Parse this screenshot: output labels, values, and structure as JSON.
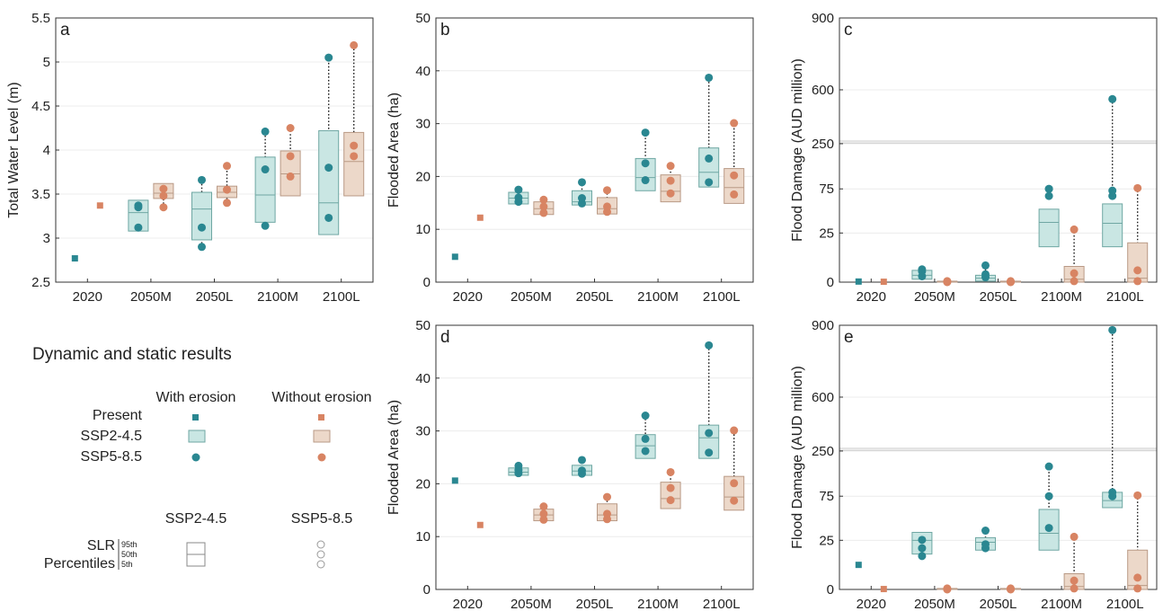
{
  "colors": {
    "erosion_box": "#c9e6e3",
    "erosion_box_edge": "#6fa7a3",
    "erosion_marker": "#2a8791",
    "noerosion_box": "#ecd8c9",
    "noerosion_box_edge": "#b99a86",
    "noerosion_marker": "#d88463",
    "grid": "#ececec"
  },
  "chart_data": [
    {
      "id": "a",
      "type": "box",
      "panel_label": "a",
      "ylabel": "Total Water Level (m)",
      "ylim": [
        2.5,
        5.5
      ],
      "yticks": [
        2.5,
        3,
        3.5,
        4,
        4.5,
        5,
        5.5
      ],
      "ytick_labels": [
        "2.5",
        "3",
        "3.5",
        "4",
        "4.5",
        "5",
        "5.5"
      ],
      "categories": [
        "2020",
        "2050M",
        "2050L",
        "2100M",
        "2100L"
      ],
      "present": {
        "with_erosion": 2.77,
        "without_erosion": 3.37
      },
      "ssp245": {
        "with_erosion": [
          [
            3.08,
            3.29,
            3.43
          ],
          [
            2.98,
            3.33,
            3.52
          ],
          [
            3.18,
            3.49,
            3.92
          ],
          [
            3.04,
            3.4,
            4.22
          ]
        ],
        "without_erosion": [
          [
            3.45,
            3.51,
            3.62
          ],
          [
            3.46,
            3.52,
            3.59
          ],
          [
            3.48,
            3.73,
            3.99
          ],
          [
            3.48,
            3.87,
            4.2
          ]
        ]
      },
      "ssp585": {
        "with_erosion": [
          [
            3.12,
            3.35,
            3.37
          ],
          [
            2.9,
            3.12,
            3.66
          ],
          [
            3.14,
            3.78,
            4.21
          ],
          [
            3.23,
            3.8,
            5.05
          ]
        ],
        "without_erosion": [
          [
            3.35,
            3.48,
            3.56
          ],
          [
            3.4,
            3.55,
            3.82
          ],
          [
            3.7,
            3.93,
            4.25
          ],
          [
            3.93,
            4.05,
            5.19
          ]
        ]
      }
    },
    {
      "id": "b",
      "type": "box",
      "panel_label": "b",
      "ylabel": "Flooded Area (ha)",
      "ylim": [
        0,
        50
      ],
      "yticks": [
        0,
        10,
        20,
        30,
        40,
        50
      ],
      "ytick_labels": [
        "0",
        "10",
        "20",
        "30",
        "40",
        "50"
      ],
      "categories": [
        "2020",
        "2050M",
        "2050L",
        "2100M",
        "2100L"
      ],
      "present": {
        "with_erosion": 4.8,
        "without_erosion": 12.2
      },
      "ssp245": {
        "with_erosion": [
          [
            14.8,
            15.9,
            17.0
          ],
          [
            14.6,
            15.2,
            17.3
          ],
          [
            17.3,
            19.8,
            23.4
          ],
          [
            18.0,
            20.8,
            25.4
          ]
        ],
        "without_erosion": [
          [
            12.8,
            13.9,
            15.2
          ],
          [
            12.9,
            13.9,
            16.0
          ],
          [
            15.2,
            17.2,
            20.3
          ],
          [
            14.9,
            17.9,
            21.5
          ]
        ]
      },
      "ssp585": {
        "with_erosion": [
          [
            15.2,
            16.0,
            17.5
          ],
          [
            14.9,
            15.9,
            18.9
          ],
          [
            19.3,
            22.5,
            28.3
          ],
          [
            18.9,
            23.4,
            38.7
          ]
        ],
        "without_erosion": [
          [
            13.1,
            14.3,
            15.6
          ],
          [
            13.3,
            14.3,
            17.4
          ],
          [
            16.8,
            19.2,
            22.0
          ],
          [
            16.6,
            20.2,
            30.1
          ]
        ]
      }
    },
    {
      "id": "c",
      "type": "box",
      "panel_label": "c",
      "ylabel": "Flood Damage (AUD million)",
      "ylim": [
        0,
        900
      ],
      "yscale": "broken",
      "yticks": [
        0,
        25,
        75,
        250,
        600,
        900
      ],
      "ytick_labels": [
        "0",
        "25",
        "75",
        "250",
        "600",
        "900"
      ],
      "categories": [
        "2020",
        "2050M",
        "2050L",
        "2100M",
        "2100L"
      ],
      "present": {
        "with_erosion": 0.3,
        "without_erosion": 0.2
      },
      "ssp245": {
        "with_erosion": [
          [
            1.5,
            3.5,
            6.0
          ],
          [
            0.5,
            2.0,
            3.5
          ],
          [
            18,
            37,
            52
          ],
          [
            18,
            36,
            58
          ]
        ],
        "without_erosion": [
          [
            0,
            0,
            0.5
          ],
          [
            0,
            0,
            0.5
          ],
          [
            0,
            1.5,
            8
          ],
          [
            0,
            2,
            20
          ]
        ]
      },
      "ssp585": {
        "with_erosion": [
          [
            3,
            5.5,
            6.5
          ],
          [
            2.5,
            4,
            8.5
          ],
          [
            67,
            75,
            75
          ],
          [
            67,
            73,
            540
          ]
        ],
        "without_erosion": [
          [
            0,
            0.2,
            0.5
          ],
          [
            0,
            0.2,
            0.5
          ],
          [
            0.5,
            4.5,
            29
          ],
          [
            0.5,
            6,
            78
          ]
        ]
      }
    },
    {
      "id": "d",
      "type": "box",
      "panel_label": "d",
      "ylabel": "Flooded Area (ha)",
      "ylim": [
        0,
        50
      ],
      "yticks": [
        0,
        10,
        20,
        30,
        40,
        50
      ],
      "ytick_labels": [
        "0",
        "10",
        "20",
        "30",
        "40",
        "50"
      ],
      "categories": [
        "2020",
        "2050M",
        "2050L",
        "2100M",
        "2100L"
      ],
      "present": {
        "with_erosion": 20.6,
        "without_erosion": 12.2
      },
      "ssp245": {
        "with_erosion": [
          [
            21.6,
            22.2,
            23.0
          ],
          [
            21.6,
            22.4,
            23.5
          ],
          [
            24.8,
            27.2,
            29.3
          ],
          [
            24.8,
            28.7,
            31.1
          ]
        ],
        "without_erosion": [
          [
            13.0,
            14.1,
            15.2
          ],
          [
            13.0,
            14.1,
            16.2
          ],
          [
            15.3,
            17.2,
            20.3
          ],
          [
            15.0,
            17.5,
            21.4
          ]
        ]
      },
      "ssp585": {
        "with_erosion": [
          [
            22.0,
            22.6,
            23.4
          ],
          [
            21.9,
            22.5,
            24.5
          ],
          [
            26.2,
            28.5,
            32.9
          ],
          [
            25.9,
            29.6,
            46.2
          ]
        ],
        "without_erosion": [
          [
            13.2,
            14.3,
            15.7
          ],
          [
            13.3,
            14.3,
            17.5
          ],
          [
            16.9,
            19.2,
            22.2
          ],
          [
            16.8,
            20.1,
            30.1
          ]
        ]
      }
    },
    {
      "id": "e",
      "type": "box",
      "panel_label": "e",
      "ylabel": "Flood Damage (AUD million)",
      "ylim": [
        0,
        900
      ],
      "yscale": "broken",
      "yticks": [
        0,
        25,
        75,
        250,
        600,
        900
      ],
      "ytick_labels": [
        "0",
        "25",
        "75",
        "250",
        "600",
        "900"
      ],
      "categories": [
        "2020",
        "2050M",
        "2050L",
        "2100M",
        "2100L"
      ],
      "present": {
        "with_erosion": 12.5,
        "without_erosion": 0.2
      },
      "ssp245": {
        "with_erosion": [
          [
            18,
            25,
            34
          ],
          [
            20,
            24,
            28
          ],
          [
            20,
            33,
            60
          ],
          [
            62,
            70,
            90
          ]
        ],
        "without_erosion": [
          [
            0,
            0,
            0.5
          ],
          [
            0,
            0,
            0.5
          ],
          [
            0,
            1.5,
            8
          ],
          [
            0,
            2,
            20
          ]
        ]
      },
      "ssp585": {
        "with_erosion": [
          [
            17,
            21,
            25.5
          ],
          [
            21,
            23,
            36
          ],
          [
            39,
            75,
            190
          ],
          [
            75,
            90,
            880
          ]
        ],
        "without_erosion": [
          [
            0,
            0.2,
            0.5
          ],
          [
            0,
            0.2,
            0.5
          ],
          [
            0.5,
            4.5,
            29
          ],
          [
            0.5,
            6,
            78
          ]
        ]
      }
    }
  ],
  "legend": {
    "title": "Dynamic and static results",
    "col_with": "With erosion",
    "col_without": "Without erosion",
    "row_present": "Present",
    "row_ssp245": "SSP2-4.5",
    "row_ssp585": "SSP5-8.5",
    "perc_header_ssp245": "SSP2-4.5",
    "perc_header_ssp585": "SSP5-8.5",
    "perc_label_1": "SLR",
    "perc_label_2": "Percentiles",
    "p95": "95th",
    "p50": "50th",
    "p5": "5th"
  }
}
